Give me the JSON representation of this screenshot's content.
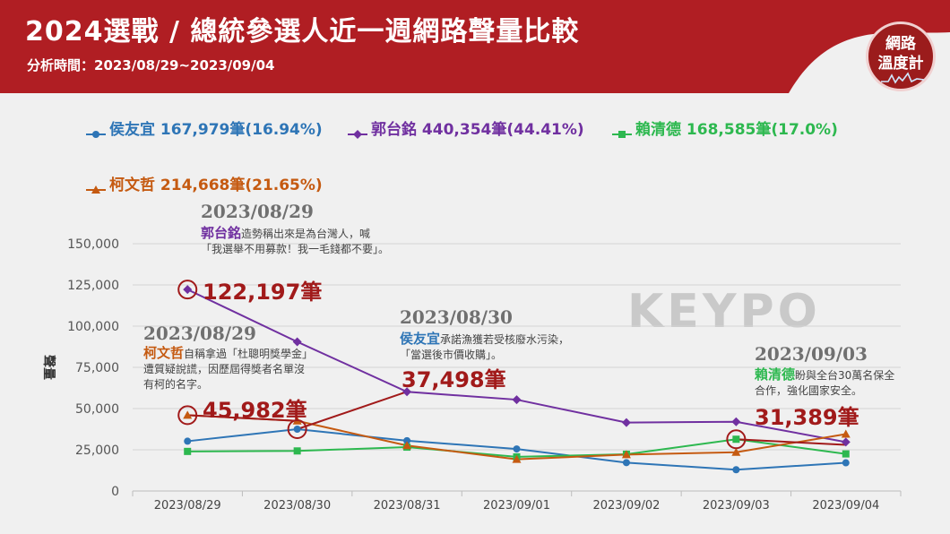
{
  "header": {
    "title": "2024選戰 / 總統參選人近一週網路聲量比較",
    "period": "分析時間：2023/08/29~2023/09/04",
    "logo_line1": "網路",
    "logo_line2": "溫度計",
    "banner_color": "#b01e23"
  },
  "legend": [
    {
      "label": "侯友宜 167,979筆(16.94%)",
      "color": "#2e75b6",
      "marker": "circle"
    },
    {
      "label": "郭台銘 440,354筆(44.41%)",
      "color": "#7030a0",
      "marker": "diamond"
    },
    {
      "label": "賴清德 168,585筆(17.0%)",
      "color": "#2db84f",
      "marker": "square"
    },
    {
      "label": "柯文哲 214,668筆(21.65%)",
      "color": "#c55a11",
      "marker": "triangle"
    }
  ],
  "watermark": "KEYPO",
  "annotations": [
    {
      "date": "2023/08/29",
      "name": "郭台銘",
      "text": "造勢稱出來是為台灣人，喊「我選舉不用募款！我一毛錢都不要」。",
      "name_color": "#7030a0",
      "value": "122,197筆"
    },
    {
      "date": "2023/08/29",
      "name": "柯文哲",
      "text": "自稱拿過「杜聰明獎學金」遭質疑說謊，因歷屆得獎者名單沒有柯的名字。",
      "name_color": "#c55a11",
      "value": "45,982筆"
    },
    {
      "date": "2023/08/30",
      "name": "侯友宜",
      "text": "承諾漁獲若受核廢水污染，「當選後市價收購」。",
      "name_color": "#2e75b6",
      "value": "37,498筆"
    },
    {
      "date": "2023/09/03",
      "name": "賴清德",
      "text": "盼與全台30萬名保全合作，強化國家安全。",
      "name_color": "#2db84f",
      "value": "31,389筆"
    }
  ],
  "chart_data": {
    "type": "line",
    "categories": [
      "2023/08/29",
      "2023/08/30",
      "2023/08/31",
      "2023/09/01",
      "2023/09/02",
      "2023/09/03",
      "2023/09/04"
    ],
    "ylabel": "聲量",
    "ylim": [
      0,
      150000
    ],
    "yticks": [
      0,
      25000,
      50000,
      75000,
      100000,
      125000,
      150000
    ],
    "ytick_labels": [
      "0",
      "25,000",
      "50,000",
      "75,000",
      "100,000",
      "125,000",
      "150,000"
    ],
    "grid": true,
    "legend_position": "top",
    "series": [
      {
        "name": "侯友宜",
        "color": "#2e75b6",
        "marker": "circle",
        "values": [
          30200,
          37498,
          30500,
          25500,
          17200,
          12900,
          17100
        ]
      },
      {
        "name": "郭台銘",
        "color": "#7030a0",
        "marker": "diamond",
        "values": [
          122197,
          90500,
          60200,
          55400,
          41500,
          42000,
          29700
        ]
      },
      {
        "name": "賴清德",
        "color": "#2db84f",
        "marker": "square",
        "values": [
          24000,
          24300,
          26600,
          20700,
          22300,
          31389,
          22500
        ]
      },
      {
        "name": "柯文哲",
        "color": "#c55a11",
        "marker": "triangle",
        "values": [
          45982,
          42500,
          27600,
          19200,
          22100,
          23500,
          34500
        ]
      }
    ],
    "highlights": [
      {
        "series": "郭台銘",
        "category": "2023/08/29",
        "value": 122197
      },
      {
        "series": "柯文哲",
        "category": "2023/08/29",
        "value": 45982
      },
      {
        "series": "侯友宜",
        "category": "2023/08/30",
        "value": 37498
      },
      {
        "series": "賴清德",
        "category": "2023/09/03",
        "value": 31389
      }
    ],
    "highlight_color": "#a11a1a"
  }
}
